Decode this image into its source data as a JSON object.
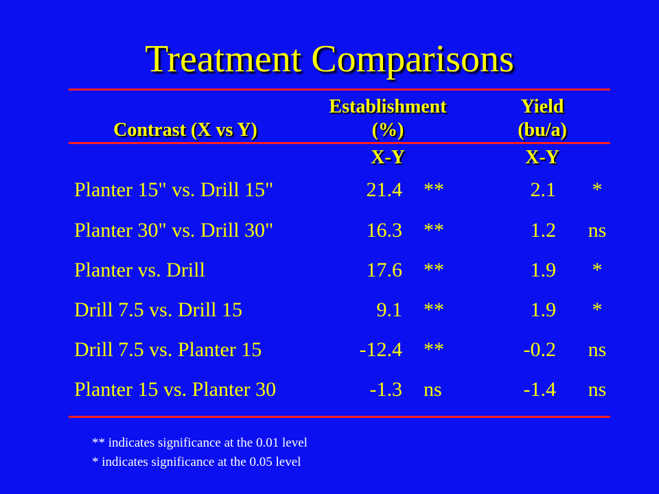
{
  "title": "Treatment Comparisons",
  "header": {
    "contrast": "Contrast (X vs Y)",
    "establishment_line1": "Establishment",
    "establishment_line2": "(%)",
    "yield_line1": "Yield",
    "yield_line2": "(bu/a)",
    "establishment_diff": "X-Y",
    "yield_diff": "X-Y"
  },
  "rows": [
    {
      "contrast": "Planter 15\" vs. Drill 15\"",
      "establishment": "21.4",
      "establishment_sig": "**",
      "yield": "2.1",
      "yield_sig": "*"
    },
    {
      "contrast": "Planter 30\" vs. Drill 30\"",
      "establishment": "16.3",
      "establishment_sig": "**",
      "yield": "1.2",
      "yield_sig": "ns"
    },
    {
      "contrast": "Planter vs. Drill",
      "establishment": "17.6",
      "establishment_sig": "**",
      "yield": "1.9",
      "yield_sig": "*"
    },
    {
      "contrast": "Drill 7.5 vs. Drill 15",
      "establishment": "9.1",
      "establishment_sig": "**",
      "yield": "1.9",
      "yield_sig": "*"
    },
    {
      "contrast": "Drill 7.5 vs. Planter 15",
      "establishment": "-12.4",
      "establishment_sig": "**",
      "yield": "-0.2",
      "yield_sig": "ns"
    },
    {
      "contrast": "Planter 15 vs. Planter 30",
      "establishment": "-1.3",
      "establishment_sig": "ns",
      "yield": "-1.4",
      "yield_sig": "ns"
    }
  ],
  "notes": [
    "** indicates significance at the 0.01 level",
    "* indicates significance at the 0.05 level"
  ],
  "colors": {
    "background": "#0a10f0",
    "text": "#ffff00",
    "rule": "#ff2020",
    "note_text": "#ffffff"
  }
}
